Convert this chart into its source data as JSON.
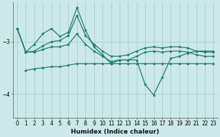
{
  "xlabel": "Humidex (Indice chaleur)",
  "background_color": "#cce8e8",
  "line_color": "#1a7a6e",
  "grid_color": "#aacccc",
  "x": [
    0,
    1,
    2,
    3,
    4,
    5,
    6,
    7,
    8,
    9,
    10,
    11,
    12,
    13,
    14,
    15,
    16,
    17,
    18,
    19,
    20,
    21,
    22,
    23
  ],
  "y_spike": [
    -2.75,
    -3.2,
    -3.05,
    -2.85,
    -2.75,
    -2.9,
    -2.82,
    -2.35,
    -2.78,
    -3.1,
    -3.25,
    -3.42,
    -3.35,
    -3.35,
    -3.35,
    -3.82,
    -4.02,
    -3.68,
    -3.32,
    -3.28,
    -3.22,
    -3.18,
    -3.18,
    -3.18
  ],
  "y_ramp": [
    -2.75,
    -3.2,
    -3.18,
    -3.08,
    -3.0,
    -2.98,
    -2.88,
    -2.5,
    -2.88,
    -3.05,
    -3.18,
    -3.28,
    -3.28,
    -3.25,
    -3.18,
    -3.12,
    -3.1,
    -3.12,
    -3.1,
    -3.1,
    -3.12,
    -3.18,
    -3.2,
    -3.2
  ],
  "y_flat_upper": [
    -2.75,
    -3.2,
    -3.2,
    -3.15,
    -3.1,
    -3.1,
    -3.05,
    -2.85,
    -3.05,
    -3.18,
    -3.28,
    -3.38,
    -3.35,
    -3.35,
    -3.28,
    -3.2,
    -3.18,
    -3.2,
    -3.18,
    -3.18,
    -3.2,
    -3.25,
    -3.28,
    -3.28
  ],
  "y_flat_lower": [
    null,
    -3.55,
    -3.52,
    -3.5,
    -3.48,
    -3.48,
    -3.45,
    -3.42,
    -3.42,
    -3.42,
    -3.42,
    -3.42,
    -3.42,
    -3.42,
    -3.42,
    -3.42,
    -3.42,
    -3.42,
    -3.42,
    -3.42,
    -3.42,
    -3.42,
    -3.42,
    -3.42
  ],
  "ylim": [
    -4.45,
    -2.25
  ],
  "yticks": [
    -4,
    -3
  ],
  "xlim": [
    -0.5,
    23.5
  ],
  "xticks": [
    0,
    1,
    2,
    3,
    4,
    5,
    6,
    7,
    8,
    9,
    10,
    11,
    12,
    13,
    14,
    15,
    16,
    17,
    18,
    19,
    20,
    21,
    22,
    23
  ]
}
